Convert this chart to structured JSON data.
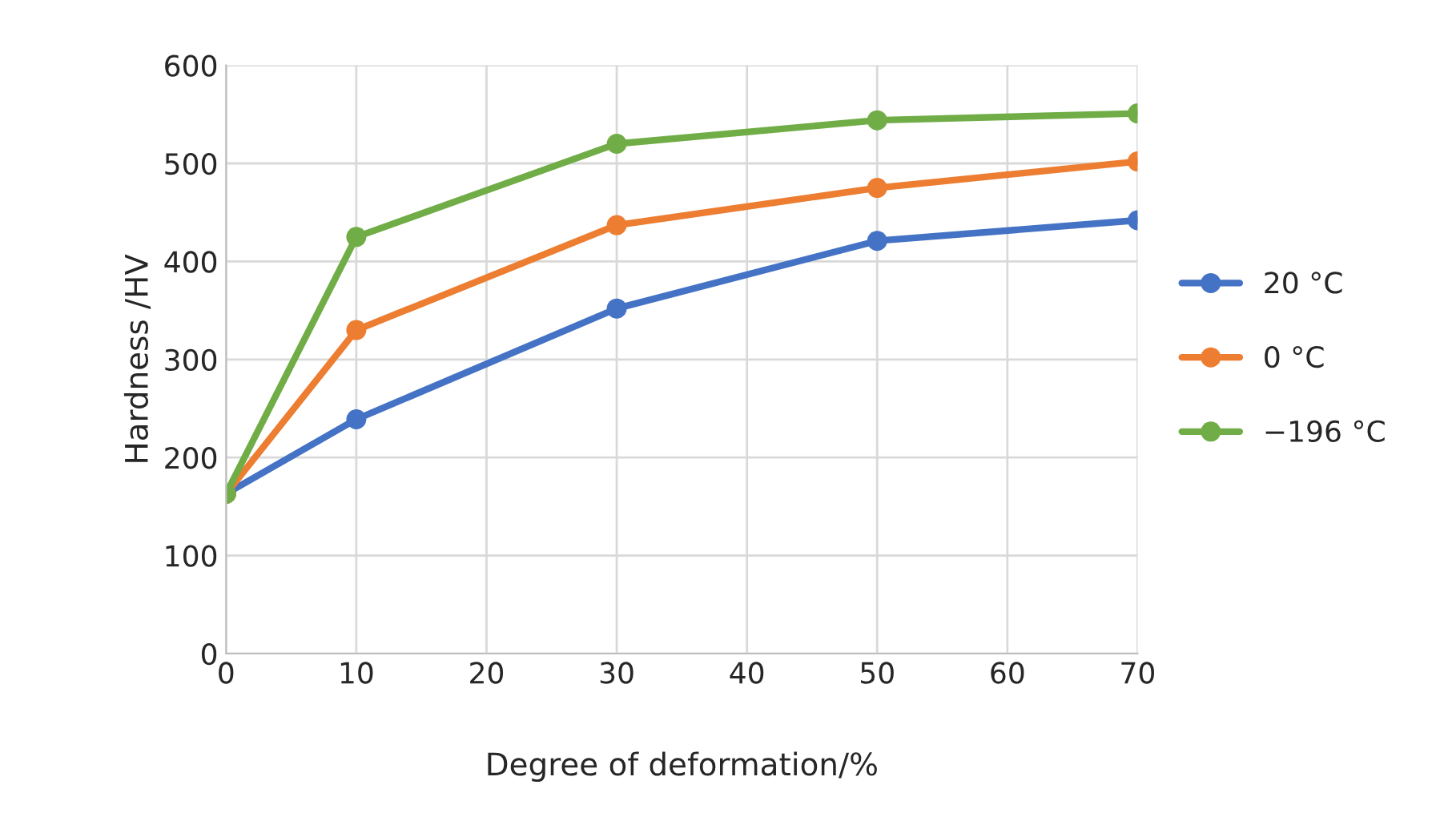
{
  "chart_data": {
    "type": "line",
    "xlabel": "Degree of deformation/%",
    "ylabel": "Hardness /HV",
    "x": [
      0,
      10,
      30,
      50,
      70
    ],
    "series": [
      {
        "name": "20 °C",
        "color": "#4472c4",
        "values": [
          163,
          239,
          352,
          421,
          442
        ]
      },
      {
        "name": "0 °C",
        "color": "#ed7d31",
        "values": [
          163,
          330,
          437,
          475,
          502
        ]
      },
      {
        "name": "−196 °C",
        "color": "#70ad47",
        "values": [
          163,
          425,
          520,
          544,
          551
        ]
      }
    ],
    "xlim": [
      0,
      70
    ],
    "xticks": [
      0,
      10,
      20,
      30,
      40,
      50,
      60,
      70
    ],
    "ylim": [
      0,
      600
    ],
    "yticks": [
      0,
      100,
      200,
      300,
      400,
      500,
      600
    ],
    "grid": true,
    "legend": "right",
    "marker": "circle",
    "line_style": "solid"
  }
}
